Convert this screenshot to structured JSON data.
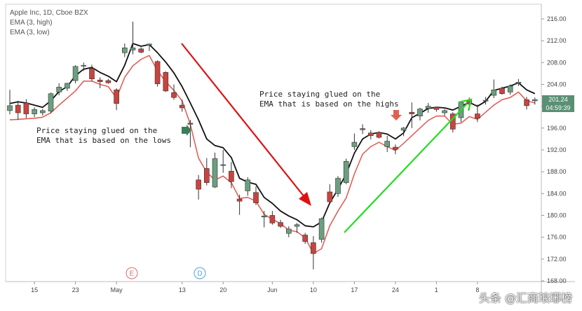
{
  "header": {
    "symbol_line": "Apple Inc, 1D, Cboe BZX",
    "indicator_high": "EMA (3, high)",
    "indicator_low": "EMA (3, low)"
  },
  "annotations": {
    "lows": "Price staying glued on the\nEMA that is based on the lows",
    "highs": "Price staying glued on the\nEMA that is based on the highs"
  },
  "price_tag": {
    "price": "201.24",
    "countdown": "04:59:39"
  },
  "event_markers": [
    "E",
    "D"
  ],
  "watermark": "头条 @汇商琅琊榜",
  "colors": {
    "up_candle": "#6b9f80",
    "down_candle": "#c9443f",
    "ema_high": "#111111",
    "ema_low": "#e0605a",
    "arrow_down": "#e01010",
    "arrow_up": "#20dd20",
    "marker_green": "#3a7d5a",
    "marker_red": "#e06050",
    "price_tag_bg": "#5a8f73"
  },
  "chart_data": {
    "type": "candlestick",
    "y_axis": {
      "min": 168,
      "max": 216,
      "side": "right",
      "ticks": [
        "216.00",
        "212.00",
        "208.00",
        "204.00",
        "200.00",
        "196.00",
        "192.00",
        "188.00",
        "184.00",
        "180.00",
        "176.00",
        "172.00",
        "168.00"
      ]
    },
    "x_axis": {
      "ticks": [
        {
          "label": "15",
          "index": 3
        },
        {
          "label": "23",
          "index": 8
        },
        {
          "label": "May",
          "index": 13
        },
        {
          "label": "13",
          "index": 21
        },
        {
          "label": "20",
          "index": 26
        },
        {
          "label": "Jun",
          "index": 32
        },
        {
          "label": "10",
          "index": 37
        },
        {
          "label": "17",
          "index": 42
        },
        {
          "label": "24",
          "index": 47
        },
        {
          "label": "1",
          "index": 52
        },
        {
          "label": "8",
          "index": 57
        }
      ]
    },
    "candles": [
      {
        "o": 199.2,
        "h": 203.0,
        "l": 198.5,
        "c": 200.1
      },
      {
        "o": 200.2,
        "h": 201.0,
        "l": 197.5,
        "c": 198.8
      },
      {
        "o": 200.6,
        "h": 201.3,
        "l": 197.8,
        "c": 198.6
      },
      {
        "o": 198.6,
        "h": 199.8,
        "l": 198.0,
        "c": 199.4
      },
      {
        "o": 198.8,
        "h": 199.5,
        "l": 198.3,
        "c": 199.2
      },
      {
        "o": 199.1,
        "h": 202.5,
        "l": 198.7,
        "c": 202.3
      },
      {
        "o": 202.6,
        "h": 204.2,
        "l": 202.0,
        "c": 203.5
      },
      {
        "o": 203.3,
        "h": 204.3,
        "l": 202.8,
        "c": 204.2
      },
      {
        "o": 204.7,
        "h": 207.5,
        "l": 204.2,
        "c": 207.3
      },
      {
        "o": 207.4,
        "h": 208.0,
        "l": 206.5,
        "c": 207.5
      },
      {
        "o": 206.9,
        "h": 207.6,
        "l": 204.6,
        "c": 205.0
      },
      {
        "o": 204.8,
        "h": 205.3,
        "l": 203.3,
        "c": 204.5
      },
      {
        "o": 204.7,
        "h": 205.0,
        "l": 204.1,
        "c": 204.3
      },
      {
        "o": 203.0,
        "h": 203.3,
        "l": 199.3,
        "c": 200.5
      },
      {
        "o": 209.8,
        "h": 211.5,
        "l": 209.0,
        "c": 210.7
      },
      {
        "o": 210.3,
        "h": 215.5,
        "l": 209.5,
        "c": 210.7
      },
      {
        "o": 210.5,
        "h": 210.8,
        "l": 209.7,
        "c": 209.9
      },
      {
        "o": 211.2,
        "h": 211.5,
        "l": 210.1,
        "c": 211.4
      },
      {
        "o": 208.2,
        "h": 208.4,
        "l": 203.6,
        "c": 204.1
      },
      {
        "o": 206.2,
        "h": 206.4,
        "l": 202.6,
        "c": 202.8
      },
      {
        "o": 202.5,
        "h": 204.0,
        "l": 201.2,
        "c": 201.6
      },
      {
        "o": 200.2,
        "h": 201.2,
        "l": 199.0,
        "c": 199.7
      },
      {
        "o": 196.9,
        "h": 197.5,
        "l": 192.5,
        "c": 196.7
      },
      {
        "o": 186.5,
        "h": 187.4,
        "l": 182.9,
        "c": 184.8
      },
      {
        "o": 188.6,
        "h": 190.5,
        "l": 185.5,
        "c": 186.0
      },
      {
        "o": 185.2,
        "h": 191.5,
        "l": 185.0,
        "c": 190.4
      },
      {
        "o": 189.2,
        "h": 192.0,
        "l": 187.8,
        "c": 189.3
      },
      {
        "o": 188.1,
        "h": 189.8,
        "l": 185.0,
        "c": 186.2
      },
      {
        "o": 183.0,
        "h": 183.8,
        "l": 180.1,
        "c": 182.6
      },
      {
        "o": 184.5,
        "h": 187.0,
        "l": 183.6,
        "c": 186.5
      },
      {
        "o": 184.2,
        "h": 185.3,
        "l": 181.9,
        "c": 182.3
      },
      {
        "o": 179.7,
        "h": 180.8,
        "l": 177.8,
        "c": 179.9
      },
      {
        "o": 180.0,
        "h": 180.8,
        "l": 178.3,
        "c": 178.6
      },
      {
        "o": 178.7,
        "h": 179.2,
        "l": 177.7,
        "c": 178.0
      },
      {
        "o": 176.7,
        "h": 178.0,
        "l": 176.0,
        "c": 177.5
      },
      {
        "o": 178.0,
        "h": 178.6,
        "l": 176.8,
        "c": 178.3
      },
      {
        "o": 176.4,
        "h": 176.8,
        "l": 174.8,
        "c": 175.2
      },
      {
        "o": 175.0,
        "h": 176.2,
        "l": 170.1,
        "c": 173.0
      },
      {
        "o": 175.6,
        "h": 179.6,
        "l": 175.0,
        "c": 179.4
      },
      {
        "o": 184.3,
        "h": 185.7,
        "l": 182.3,
        "c": 182.5
      },
      {
        "o": 184.0,
        "h": 187.2,
        "l": 183.4,
        "c": 186.8
      },
      {
        "o": 186.0,
        "h": 190.4,
        "l": 185.7,
        "c": 189.9
      },
      {
        "o": 192.6,
        "h": 195.0,
        "l": 192.0,
        "c": 193.4
      },
      {
        "o": 195.9,
        "h": 196.7,
        "l": 194.9,
        "c": 195.7
      },
      {
        "o": 195.1,
        "h": 195.6,
        "l": 193.9,
        "c": 194.6
      },
      {
        "o": 195.2,
        "h": 195.4,
        "l": 194.1,
        "c": 194.3
      },
      {
        "o": 192.6,
        "h": 194.6,
        "l": 191.6,
        "c": 193.6
      },
      {
        "o": 192.5,
        "h": 193.0,
        "l": 191.2,
        "c": 192.1
      },
      {
        "o": 195.6,
        "h": 196.2,
        "l": 194.5,
        "c": 196.0
      },
      {
        "o": 198.9,
        "h": 200.7,
        "l": 196.0,
        "c": 198.6
      },
      {
        "o": 198.2,
        "h": 199.7,
        "l": 197.4,
        "c": 199.5
      },
      {
        "o": 199.6,
        "h": 200.6,
        "l": 198.8,
        "c": 200.0
      },
      {
        "o": 199.8,
        "h": 199.9,
        "l": 199.0,
        "c": 199.4
      },
      {
        "o": 198.8,
        "h": 199.5,
        "l": 198.3,
        "c": 199.2
      },
      {
        "o": 198.6,
        "h": 198.9,
        "l": 195.2,
        "c": 195.8
      },
      {
        "o": 197.9,
        "h": 200.8,
        "l": 197.1,
        "c": 200.7
      },
      {
        "o": 201.1,
        "h": 201.6,
        "l": 199.3,
        "c": 200.4
      },
      {
        "o": 198.6,
        "h": 200.3,
        "l": 197.1,
        "c": 197.8
      },
      {
        "o": 201.0,
        "h": 201.7,
        "l": 200.3,
        "c": 201.1
      },
      {
        "o": 202.0,
        "h": 204.9,
        "l": 201.5,
        "c": 203.0
      },
      {
        "o": 203.3,
        "h": 203.6,
        "l": 202.1,
        "c": 202.3
      },
      {
        "o": 202.6,
        "h": 204.0,
        "l": 202.1,
        "c": 203.7
      },
      {
        "o": 204.2,
        "h": 205.0,
        "l": 203.7,
        "c": 204.4
      },
      {
        "o": 201.2,
        "h": 201.7,
        "l": 199.4,
        "c": 200.1
      },
      {
        "o": 201.0,
        "h": 201.6,
        "l": 200.3,
        "c": 201.2
      }
    ],
    "ema_high": [
      200.5,
      200.8,
      200.6,
      200.2,
      199.8,
      201.0,
      202.7,
      203.6,
      205.6,
      206.8,
      207.1,
      206.2,
      205.5,
      204.5,
      207.5,
      211.5,
      211.0,
      211.3,
      209.8,
      208.1,
      206.1,
      203.6,
      200.6,
      197.5,
      194.0,
      192.8,
      192.4,
      190.6,
      186.8,
      186.1,
      185.7,
      183.3,
      182.2,
      180.8,
      179.9,
      179.2,
      178.1,
      177.9,
      178.8,
      182.3,
      184.8,
      187.6,
      191.4,
      194.0,
      194.9,
      195.2,
      194.9,
      194.0,
      195.1,
      197.9,
      198.7,
      199.6,
      199.8,
      199.7,
      199.3,
      200.0,
      200.7,
      200.0,
      200.9,
      202.9,
      203.3,
      203.7,
      204.3,
      203.0,
      202.3
    ],
    "ema_low": [
      197.5,
      197.6,
      197.7,
      197.8,
      198.0,
      198.8,
      200.2,
      201.5,
      202.8,
      204.6,
      204.6,
      204.0,
      203.6,
      201.5,
      205.3,
      207.4,
      208.6,
      209.3,
      206.5,
      204.5,
      202.9,
      201.0,
      196.7,
      190.5,
      187.9,
      186.5,
      187.2,
      186.0,
      183.1,
      183.3,
      182.6,
      180.2,
      179.3,
      178.5,
      177.3,
      177.0,
      175.9,
      173.0,
      173.9,
      178.1,
      180.8,
      183.2,
      187.6,
      191.2,
      192.6,
      193.4,
      192.6,
      191.9,
      193.2,
      194.6,
      196.0,
      197.4,
      198.2,
      198.2,
      196.7,
      196.9,
      198.1,
      197.6,
      198.9,
      200.2,
      201.2,
      201.6,
      202.6,
      201.0,
      200.6
    ],
    "annotations": [
      {
        "text": "Price staying glued on the EMA that is based on the lows"
      },
      {
        "text": "Price staying glued on the EMA that is based on the highs"
      }
    ],
    "last_price": 201.24,
    "grid": false
  }
}
